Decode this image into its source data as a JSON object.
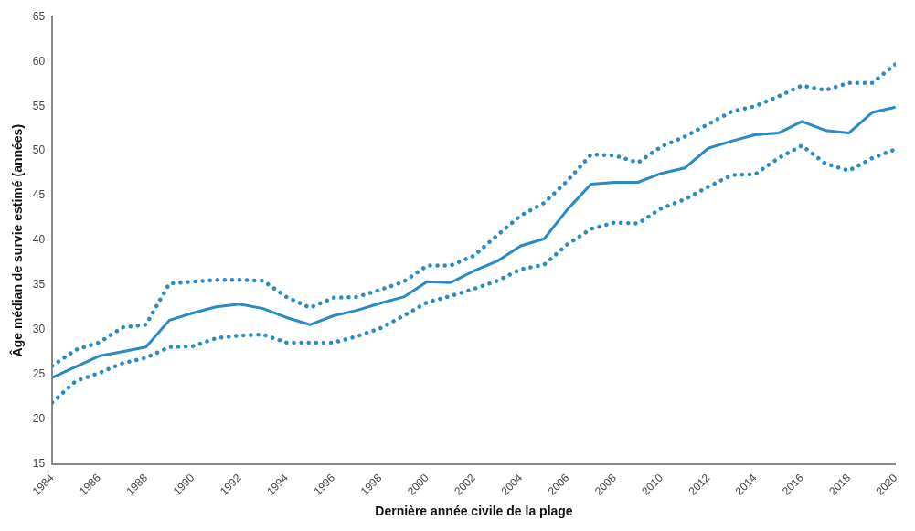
{
  "chart_data": {
    "type": "line",
    "xlabel": "Dernière année civile de la plage",
    "ylabel": "Âge médian de survie estimé (années)",
    "x": [
      1984,
      1985,
      1986,
      1987,
      1988,
      1989,
      1990,
      1991,
      1992,
      1993,
      1994,
      1995,
      1996,
      1997,
      1998,
      1999,
      2000,
      2001,
      2002,
      2003,
      2004,
      2005,
      2006,
      2007,
      2008,
      2009,
      2010,
      2011,
      2012,
      2013,
      2014,
      2015,
      2016,
      2017,
      2018,
      2019,
      2020
    ],
    "series": [
      {
        "color": "#2a8ac4",
        "line_style": "dotted",
        "values": [
          26,
          27.8,
          28.6,
          30.3,
          30.6,
          35.2,
          35.4,
          35.6,
          35.6,
          35.5,
          33.7,
          32.5,
          33.6,
          33.7,
          34.5,
          35.4,
          37.2,
          37.2,
          38.3,
          40.6,
          42.8,
          44.2,
          46.7,
          49.6,
          49.5,
          48.7,
          50.5,
          51.6,
          53,
          54.4,
          55,
          56.1,
          57.3,
          56.8,
          57.6,
          57.6,
          59.7
        ]
      },
      {
        "color": "#2a8ac4",
        "line_style": "solid",
        "values": [
          24.7,
          25.9,
          27.1,
          27.6,
          28.1,
          31.1,
          31.9,
          32.6,
          32.9,
          32.4,
          31.4,
          30.6,
          31.6,
          32.2,
          33,
          33.7,
          35.4,
          35.3,
          36.6,
          37.7,
          39.4,
          40.2,
          43.5,
          46.3,
          46.5,
          46.5,
          47.5,
          48.1,
          50.3,
          51.1,
          51.8,
          52,
          53.3,
          52.3,
          52,
          54.3,
          54.9
        ]
      },
      {
        "color": "#2a8ac4",
        "line_style": "dotted",
        "values": [
          21.9,
          24.3,
          25.2,
          26.3,
          26.9,
          28.1,
          28.2,
          29.1,
          29.4,
          29.5,
          28.6,
          28.6,
          28.6,
          29.3,
          30.2,
          31.6,
          33.1,
          33.8,
          34.6,
          35.5,
          36.8,
          37.3,
          39.6,
          41.3,
          42,
          41.9,
          43.6,
          44.6,
          46,
          47.3,
          47.4,
          49.2,
          50.6,
          48.6,
          47.8,
          49.2,
          50.2
        ]
      }
    ],
    "xlim": [
      1984,
      2020
    ],
    "xticks": [
      1984,
      1986,
      1988,
      1990,
      1992,
      1994,
      1996,
      1998,
      2000,
      2002,
      2004,
      2006,
      2008,
      2010,
      2012,
      2014,
      2016,
      2018,
      2020
    ],
    "ylim": [
      15,
      65
    ],
    "yticks": [
      15,
      20,
      25,
      30,
      35,
      40,
      45,
      50,
      55,
      60,
      65
    ],
    "grid": false,
    "legend": false,
    "marker": "none"
  }
}
